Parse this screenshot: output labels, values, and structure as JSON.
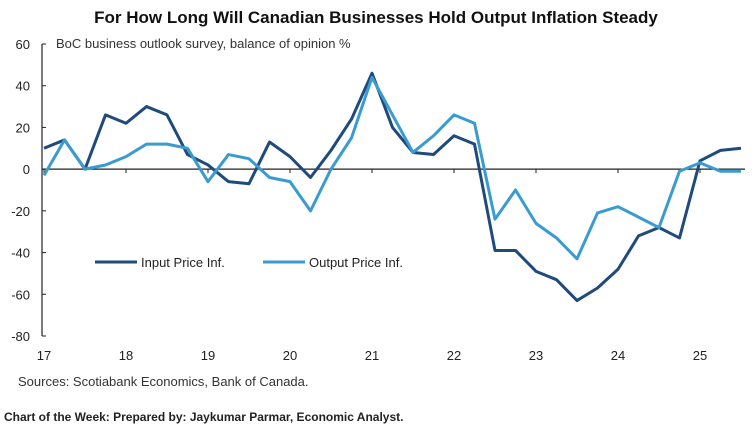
{
  "chart_data": {
    "type": "line",
    "title": "For How Long Will Canadian Businesses Hold Output Inflation Steady",
    "subtitle": "BoC business outlook survey, balance of opinion %",
    "x_tick_labels": [
      "17",
      "18",
      "19",
      "20",
      "21",
      "22",
      "23",
      "24",
      "25"
    ],
    "y_ticks": [
      60,
      40,
      20,
      0,
      -20,
      -40,
      -60,
      -80
    ],
    "ylim": [
      -80,
      60
    ],
    "x_start": "2017Q1",
    "frequency": "quarterly",
    "grid": false,
    "legend_placement": "center-left",
    "series": [
      {
        "name": "Input Price Inf.",
        "color": "#1f4a7c",
        "values": [
          10,
          14,
          0,
          26,
          22,
          30,
          26,
          7,
          2,
          -6,
          -7,
          13,
          6,
          -4,
          9,
          24,
          46,
          20,
          8,
          7,
          16,
          12,
          -39,
          -39,
          -49,
          -53,
          -63,
          -57,
          -48,
          -32,
          -28,
          -33,
          4,
          9,
          10
        ]
      },
      {
        "name": "Output Price Inf.",
        "color": "#3a9bd0",
        "values": [
          -3,
          14,
          0,
          2,
          6,
          12,
          12,
          10,
          -6,
          7,
          5,
          -4,
          -6,
          -20,
          0,
          15,
          44,
          26,
          8,
          16,
          26,
          22,
          -24,
          -10,
          -26,
          -33,
          -43,
          -21,
          -18,
          -23,
          -28,
          -1,
          3,
          -1,
          -1
        ]
      }
    ]
  },
  "sources": "Sources: Scotiabank Economics, Bank of Canada.",
  "footer": "Chart of the Week: Prepared by: Jaykumar Parmar, Economic Analyst."
}
